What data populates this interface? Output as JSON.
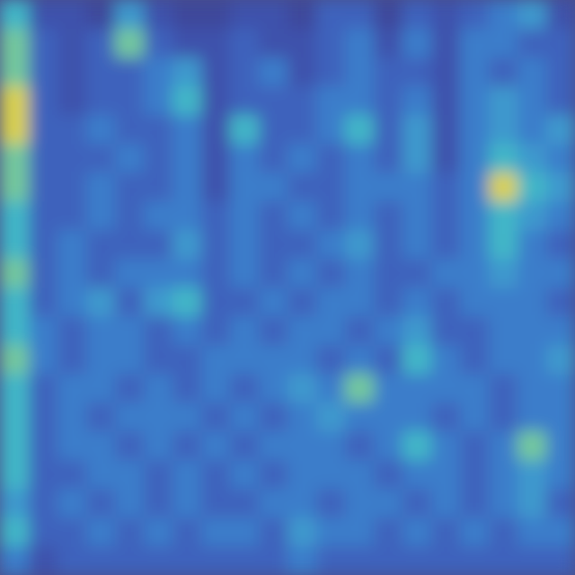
{
  "chart_data": {
    "type": "heatmap",
    "tick_labels": false,
    "zlim": [
      0,
      10
    ],
    "z": [
      [
        6,
        2,
        2,
        1,
        5,
        2,
        1,
        1,
        2,
        2,
        1,
        3,
        3,
        1,
        3,
        2,
        3,
        4,
        5,
        2
      ],
      [
        7,
        3,
        2,
        3,
        7,
        3,
        2,
        2,
        3,
        2,
        2,
        3,
        4,
        2,
        4,
        2,
        4,
        4,
        3,
        3
      ],
      [
        7,
        3,
        2,
        3,
        3,
        4,
        5,
        2,
        3,
        4,
        2,
        3,
        4,
        3,
        3,
        2,
        4,
        3,
        4,
        3
      ],
      [
        8,
        3,
        2,
        3,
        3,
        4,
        6,
        2,
        3,
        3,
        3,
        4,
        4,
        3,
        4,
        2,
        4,
        5,
        4,
        3
      ],
      [
        8,
        3,
        3,
        4,
        3,
        3,
        4,
        2,
        6,
        3,
        3,
        4,
        6,
        3,
        5,
        2,
        4,
        5,
        4,
        5
      ],
      [
        7,
        3,
        3,
        3,
        4,
        3,
        4,
        2,
        4,
        3,
        4,
        3,
        4,
        3,
        5,
        2,
        4,
        6,
        5,
        4
      ],
      [
        7,
        3,
        3,
        4,
        3,
        3,
        4,
        2,
        4,
        4,
        3,
        3,
        4,
        4,
        4,
        3,
        4,
        8,
        6,
        5
      ],
      [
        6,
        3,
        3,
        4,
        3,
        4,
        4,
        3,
        4,
        3,
        4,
        3,
        4,
        3,
        4,
        3,
        4,
        6,
        5,
        4
      ],
      [
        6,
        3,
        4,
        3,
        3,
        3,
        5,
        3,
        4,
        3,
        3,
        4,
        5,
        3,
        4,
        3,
        4,
        6,
        4,
        3
      ],
      [
        7,
        3,
        4,
        3,
        4,
        4,
        4,
        3,
        4,
        3,
        4,
        3,
        4,
        3,
        3,
        4,
        4,
        5,
        4,
        4
      ],
      [
        6,
        3,
        4,
        5,
        3,
        5,
        6,
        3,
        3,
        4,
        3,
        4,
        4,
        3,
        4,
        3,
        4,
        4,
        4,
        3
      ],
      [
        6,
        4,
        3,
        4,
        4,
        3,
        4,
        3,
        4,
        3,
        4,
        4,
        3,
        4,
        5,
        3,
        3,
        4,
        4,
        4
      ],
      [
        7,
        4,
        3,
        4,
        4,
        3,
        3,
        4,
        4,
        4,
        4,
        3,
        4,
        3,
        6,
        4,
        3,
        4,
        4,
        5
      ],
      [
        6,
        3,
        4,
        4,
        3,
        4,
        3,
        4,
        3,
        4,
        5,
        4,
        7,
        4,
        4,
        4,
        4,
        3,
        4,
        4
      ],
      [
        6,
        3,
        4,
        3,
        4,
        4,
        4,
        3,
        4,
        3,
        4,
        5,
        4,
        4,
        4,
        3,
        4,
        3,
        4,
        4
      ],
      [
        6,
        3,
        4,
        4,
        3,
        4,
        3,
        4,
        3,
        4,
        4,
        4,
        3,
        4,
        6,
        4,
        3,
        4,
        7,
        4
      ],
      [
        6,
        3,
        3,
        4,
        4,
        3,
        4,
        3,
        4,
        3,
        4,
        4,
        4,
        3,
        4,
        4,
        3,
        4,
        5,
        4
      ],
      [
        5,
        3,
        4,
        3,
        4,
        3,
        4,
        3,
        3,
        4,
        4,
        3,
        4,
        4,
        3,
        4,
        3,
        4,
        5,
        3
      ],
      [
        6,
        3,
        3,
        4,
        3,
        4,
        3,
        4,
        4,
        3,
        5,
        4,
        4,
        3,
        4,
        3,
        4,
        3,
        4,
        4
      ],
      [
        4,
        2,
        3,
        3,
        3,
        3,
        3,
        3,
        3,
        3,
        4,
        3,
        3,
        3,
        3,
        3,
        3,
        3,
        3,
        3
      ]
    ]
  }
}
